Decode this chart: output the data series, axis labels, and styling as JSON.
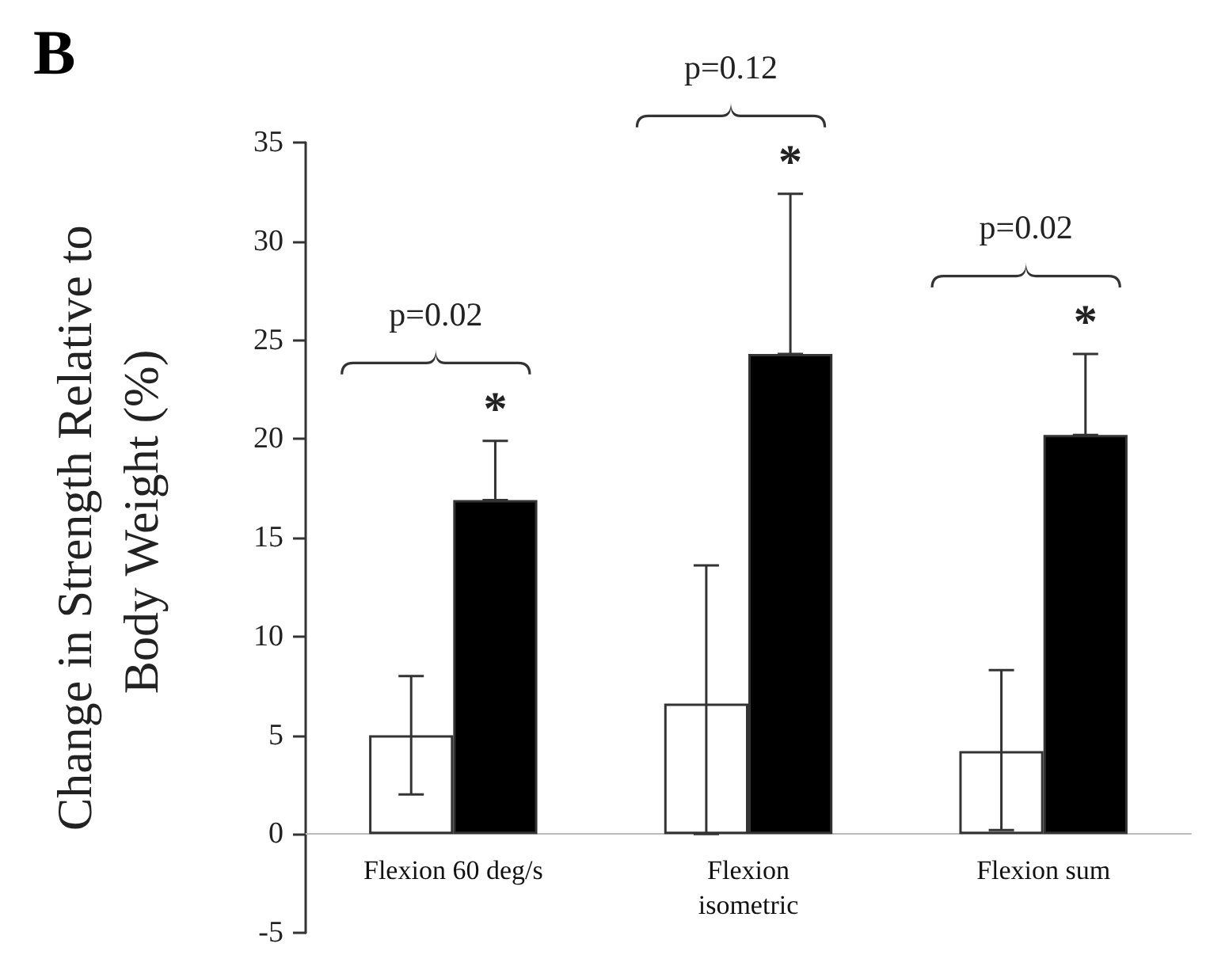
{
  "chart_data": {
    "type": "bar",
    "title": "B",
    "ylabel": "Change in Strength Relative to Body Weight (%)",
    "categories": [
      "Flexion 60 deg/s",
      "Flexion\nisometric",
      "Flexion sum"
    ],
    "series": [
      {
        "color": "#ffffff",
        "values": [
          5.0,
          6.6,
          4.2
        ],
        "errors": [
          [
            2.0,
            8.0
          ],
          [
            0.0,
            13.6
          ],
          [
            0.2,
            8.3
          ]
        ]
      },
      {
        "color": "#000000",
        "values": [
          16.9,
          24.3,
          20.2
        ],
        "errors": [
          [
            16.9,
            19.9
          ],
          [
            24.3,
            32.4
          ],
          [
            20.2,
            24.3
          ]
        ]
      }
    ],
    "ylim": [
      -5,
      35
    ],
    "yticks": [
      -5,
      0,
      5,
      10,
      15,
      20,
      25,
      30,
      35
    ],
    "annotations": [
      "p=0.02",
      "p=0.12",
      "p=0.02",
      "*",
      "*",
      "*"
    ]
  }
}
